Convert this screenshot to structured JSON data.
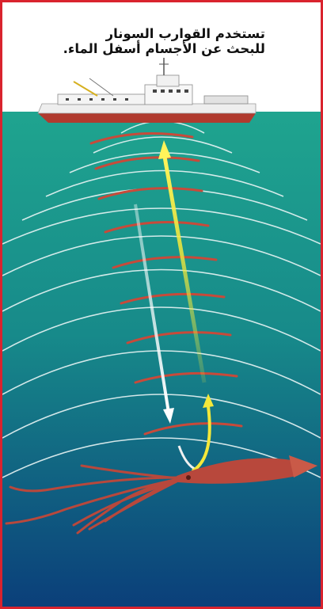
{
  "caption": {
    "line1": "تستخدم القوارب السونار",
    "line2": "للبحث عن الأجسام أسفل الماء."
  },
  "colors": {
    "frame_border": "#d9232e",
    "water_top": "#1fa48f",
    "water_bottom": "#0b3f7a",
    "wave_white": "#e8f4f4",
    "wave_red": "#c84a3a",
    "outgoing_arrow": "#ffffff",
    "return_arrow": "#f4e83a",
    "squid": "#b8483c",
    "ship_hull": "#b03a2e"
  },
  "icons": {
    "ship": "ship-icon",
    "squid": "squid-icon"
  }
}
